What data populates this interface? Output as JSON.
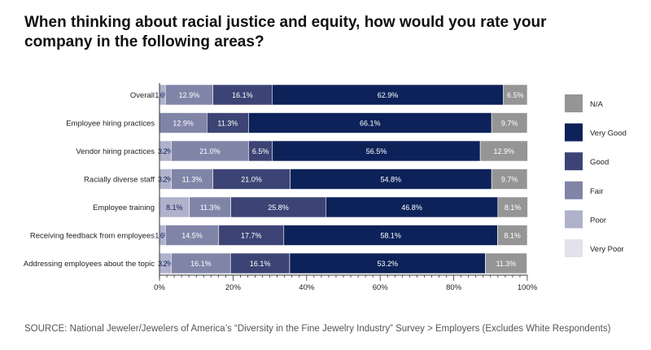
{
  "title": "When thinking about racial justice and equity, how would you rate your company in the following areas?",
  "source": "SOURCE: National Jeweler/Jewelers of America’s “Diversity in the Fine Jewelry Industry” Survey > Employers  (Excludes White Respondents)",
  "chart_data": {
    "type": "bar",
    "orientation": "horizontal",
    "stacked": true,
    "categories": [
      "Overall",
      "Employee hiring practices",
      "Vendor hiring practices",
      "Racially diverse staff",
      "Employee training",
      "Receiving feedback from employees",
      "Addressing employees about the topic"
    ],
    "series": [
      {
        "name": "Very Poor",
        "color": "#e1e2ec",
        "values": [
          0,
          0,
          0,
          0,
          0,
          0,
          0
        ]
      },
      {
        "name": "Poor",
        "color": "#b0b2cb",
        "values": [
          1.6,
          0,
          3.2,
          3.2,
          8.1,
          1.6,
          3.2
        ]
      },
      {
        "name": "Fair",
        "color": "#8085a8",
        "values": [
          12.9,
          12.9,
          21.0,
          11.3,
          11.3,
          14.5,
          16.1
        ]
      },
      {
        "name": "Good",
        "color": "#3d4475",
        "values": [
          16.1,
          11.3,
          6.5,
          21.0,
          25.8,
          17.7,
          16.1
        ]
      },
      {
        "name": "Very Good",
        "color": "#0d2259",
        "values": [
          62.9,
          66.1,
          56.5,
          54.8,
          46.8,
          58.1,
          53.2
        ]
      },
      {
        "name": "N/A",
        "color": "#959595",
        "values": [
          6.5,
          9.7,
          12.9,
          9.7,
          8.1,
          8.1,
          11.3
        ]
      }
    ],
    "legend_order": [
      "N/A",
      "Very Good",
      "Good",
      "Fair",
      "Poor",
      "Very Poor"
    ],
    "xlim": [
      0,
      100
    ],
    "xticks": [
      "0%",
      "20%",
      "40%",
      "60%",
      "80%",
      "100%"
    ],
    "legend_position": "right",
    "grid": false
  }
}
